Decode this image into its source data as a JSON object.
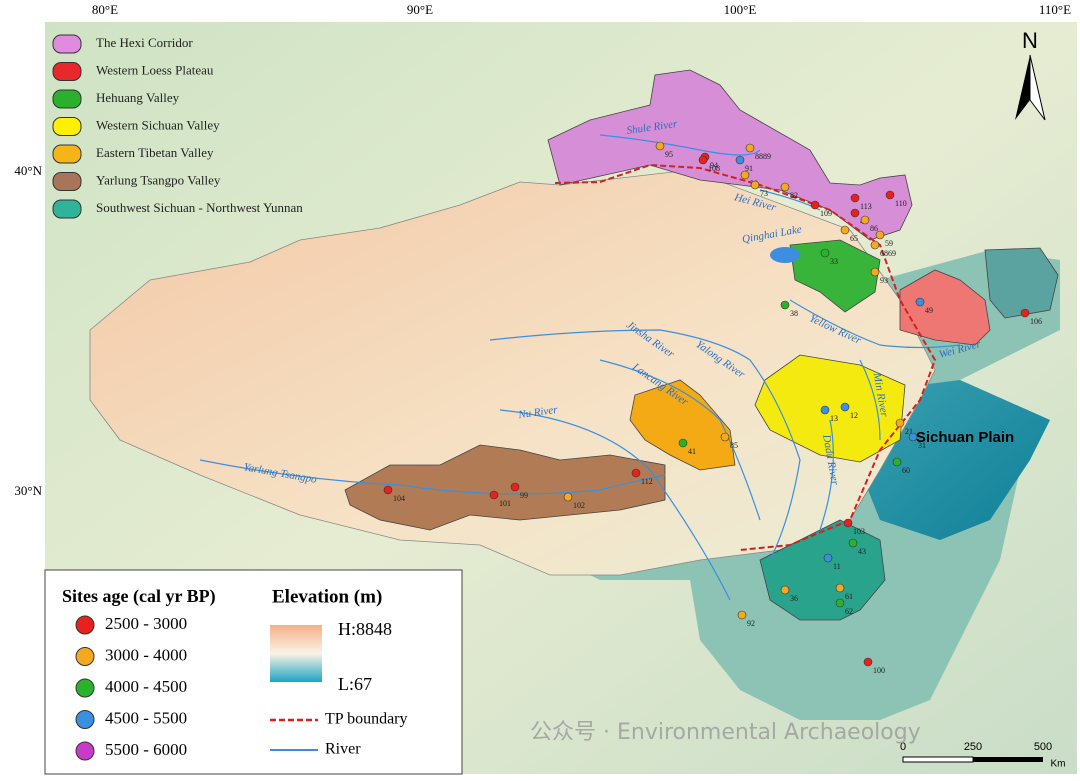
{
  "map": {
    "region_legend": [
      "The Hexi Corridor",
      "Western Loess Plateau",
      "Hehuang Valley",
      "Western Sichuan Valley",
      "Eastern Tibetan Valley",
      "Yarlung Tsangpo Valley",
      "Southwest Sichuan - Northwest Yunnan"
    ],
    "graticule": {
      "top": [
        "80°E",
        "90°E",
        "100°E",
        "110°E"
      ],
      "left": [
        "40°N",
        "30°N"
      ]
    },
    "rivers": [
      "Shule River",
      "Hei River",
      "Qinghai Lake",
      "Yellow River",
      "Wei River",
      "Jinsha River",
      "Yalong River",
      "Lancang River",
      "Nu River",
      "Min River",
      "Dadu River",
      "Yarlung Tsangpo"
    ],
    "places": [
      "Sichuan Plain"
    ],
    "north": "N",
    "sites": [
      "95",
      "94",
      "8889",
      "108",
      "91",
      "30",
      "73",
      "82",
      "109",
      "113",
      "47",
      "110",
      "65",
      "86",
      "59",
      "6869",
      "33",
      "93",
      "38",
      "49",
      "106",
      "13",
      "12",
      "41",
      "85",
      "21",
      "31",
      "60",
      "104",
      "99",
      "101",
      "102",
      "112",
      "103",
      "43",
      "11",
      "61",
      "62",
      "36",
      "92",
      "100"
    ],
    "age_legend": {
      "title": "Sites age (cal yr BP)",
      "classes": [
        "2500 - 3000",
        "3000 - 4000",
        "4000 - 4500",
        "4500 - 5500",
        "5500 - 6000"
      ]
    },
    "elevation_legend": {
      "title": "Elevation (m)",
      "high": "H:8848",
      "low": "L:67"
    },
    "line_legend": [
      "TP boundary",
      "River"
    ],
    "scale": {
      "ticks": [
        "0",
        "250",
        "500"
      ],
      "unit": "Km"
    },
    "watermark": "公众号 · Environmental Archaeology"
  }
}
